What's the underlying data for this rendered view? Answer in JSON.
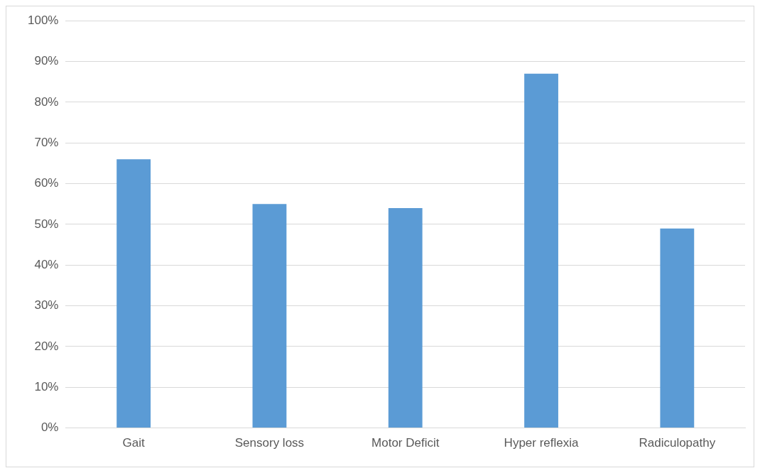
{
  "chart_data": {
    "type": "bar",
    "categories": [
      "Gait",
      "Sensory loss",
      "Motor Deficit",
      "Hyper reflexia",
      "Radiculopathy"
    ],
    "values": [
      66,
      55,
      54,
      87,
      49
    ],
    "color": "#5b9bd5",
    "ylim": [
      0,
      100
    ],
    "yticks": [
      {
        "value": 0,
        "label": "0%"
      },
      {
        "value": 10,
        "label": "10%"
      },
      {
        "value": 20,
        "label": "20%"
      },
      {
        "value": 30,
        "label": "30%"
      },
      {
        "value": 40,
        "label": "40%"
      },
      {
        "value": 50,
        "label": "50%"
      },
      {
        "value": 60,
        "label": "60%"
      },
      {
        "value": 70,
        "label": "70%"
      },
      {
        "value": 80,
        "label": "80%"
      },
      {
        "value": 90,
        "label": "90%"
      },
      {
        "value": 100,
        "label": "100%"
      }
    ],
    "grid": "y",
    "legend": false
  }
}
